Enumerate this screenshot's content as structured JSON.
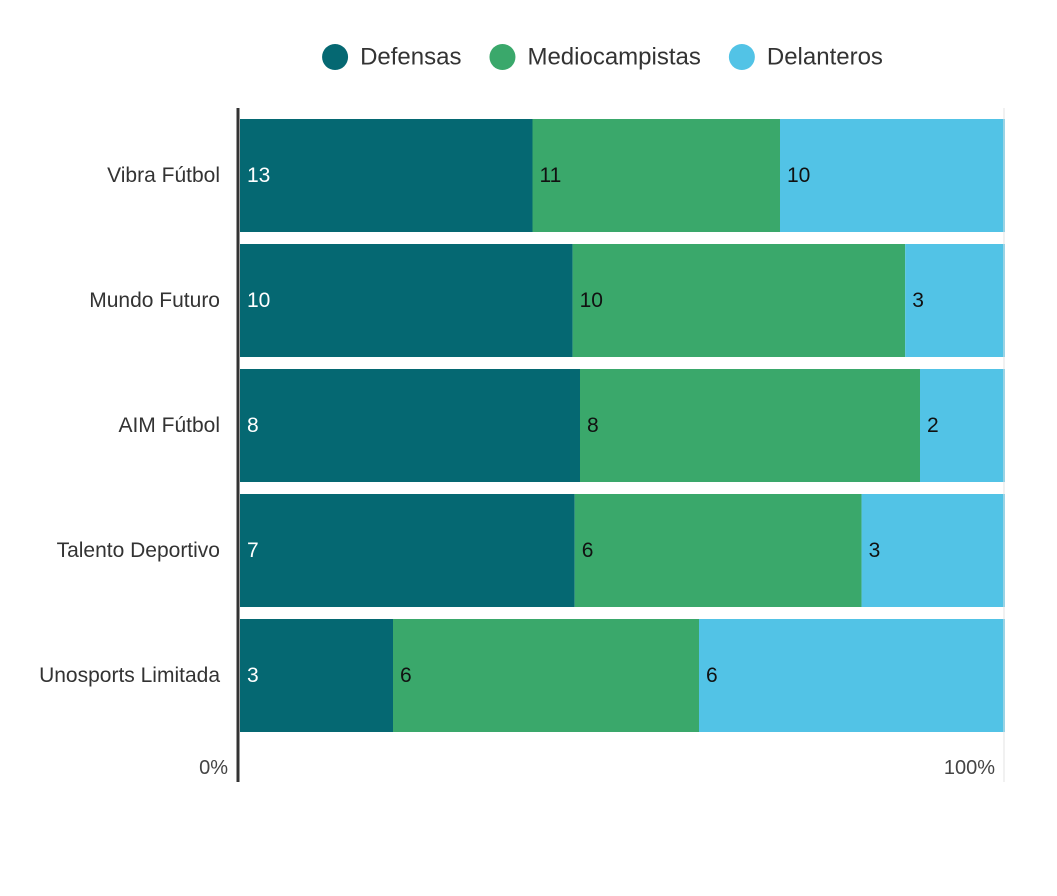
{
  "chart_data": {
    "type": "bar",
    "orientation": "horizontal",
    "stacking": "percent",
    "categories": [
      "Vibra Fútbol",
      "Mundo Futuro",
      "AIM Fútbol",
      "Talento Deportivo",
      "Unosports Limitada"
    ],
    "series": [
      {
        "name": "Defensas",
        "color": "#056872",
        "label_color": "#ffffff",
        "values": [
          13,
          10,
          8,
          7,
          3
        ]
      },
      {
        "name": "Mediocampistas",
        "color": "#3aa86b",
        "label_color": "#111111",
        "values": [
          11,
          10,
          8,
          6,
          6
        ]
      },
      {
        "name": "Delanteros",
        "color": "#52c3e6",
        "label_color": "#111111",
        "values": [
          10,
          3,
          2,
          3,
          6
        ]
      }
    ],
    "x_ticks": [
      "0%",
      "100%"
    ],
    "xlim": [
      0,
      100
    ],
    "legend": "top-center",
    "grid": false
  }
}
